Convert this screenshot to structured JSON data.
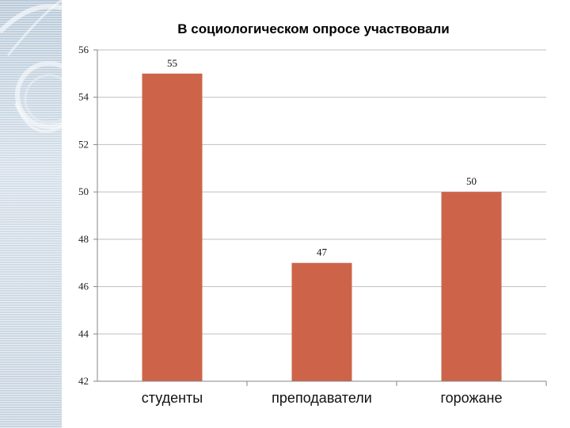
{
  "chart_data": {
    "type": "bar",
    "title": "В социологическом  опросе участвовали",
    "categories": [
      "студенты",
      "преподаватели",
      "горожане"
    ],
    "values": [
      55,
      47,
      50
    ],
    "data_labels": [
      "55",
      "47",
      "50"
    ],
    "ylim": [
      42,
      56
    ],
    "yticks": [
      "42",
      "44",
      "46",
      "48",
      "50",
      "52",
      "54",
      "56"
    ],
    "xlabel": "",
    "ylabel": "",
    "grid": true,
    "legend": "none",
    "colors": {
      "bar": "#cd6449",
      "grid": "#bfbfbf",
      "axis": "#868686",
      "sidebar": "#c9d6e2"
    }
  }
}
